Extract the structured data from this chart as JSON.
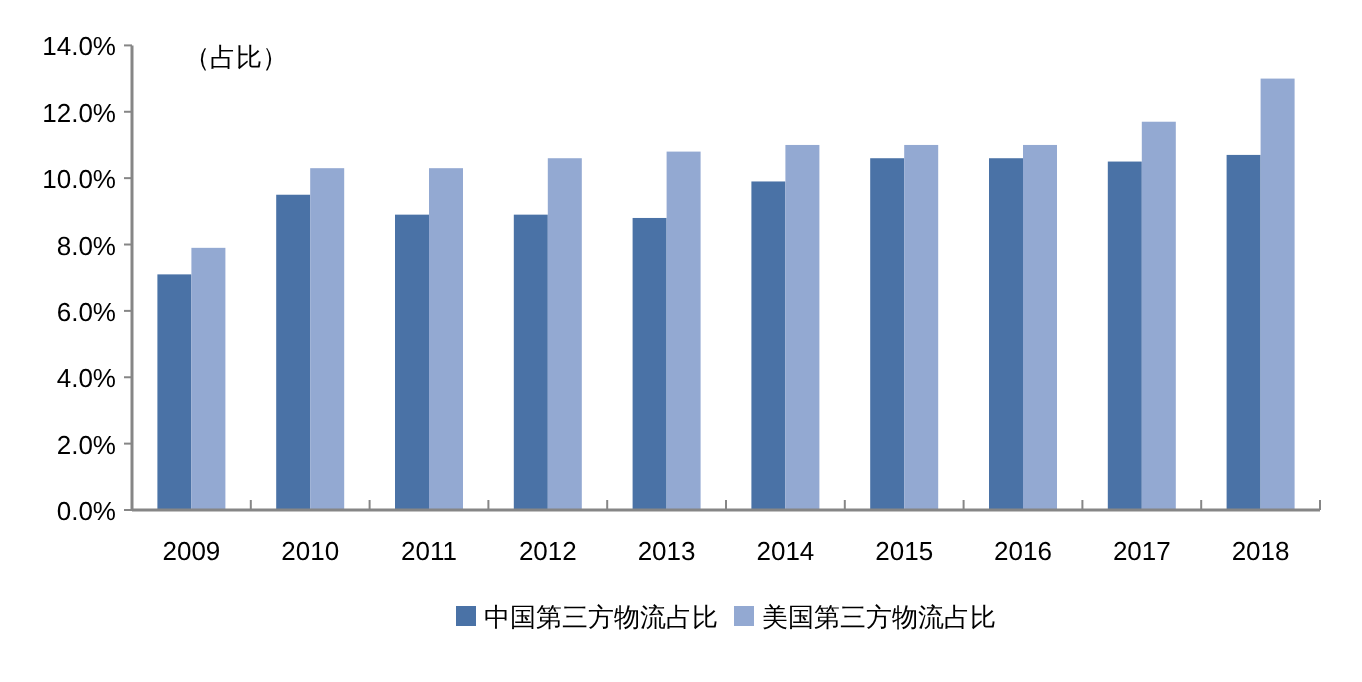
{
  "chart_data": {
    "type": "bar",
    "ylabel": "（占比）",
    "categories": [
      "2009",
      "2010",
      "2011",
      "2012",
      "2013",
      "2014",
      "2015",
      "2016",
      "2017",
      "2018"
    ],
    "series": [
      {
        "name": "中国第三方物流占比",
        "color": "#4a72a6",
        "values": [
          7.1,
          9.5,
          8.9,
          8.9,
          8.8,
          9.9,
          10.6,
          10.6,
          10.5,
          10.7
        ]
      },
      {
        "name": "美国第三方物流占比",
        "color": "#93a9d2",
        "values": [
          7.9,
          10.3,
          10.3,
          10.6,
          10.8,
          11.0,
          11.0,
          11.0,
          11.7,
          13.0
        ]
      }
    ],
    "ylim": [
      0,
      14
    ],
    "yticks": [
      {
        "value": 0,
        "label": "0.0%"
      },
      {
        "value": 2,
        "label": "2.0%"
      },
      {
        "value": 4,
        "label": "4.0%"
      },
      {
        "value": 6,
        "label": "6.0%"
      },
      {
        "value": 8,
        "label": "8.0%"
      },
      {
        "value": 10,
        "label": "10.0%"
      },
      {
        "value": 12,
        "label": "12.0%"
      },
      {
        "value": 14,
        "label": "14.0%"
      }
    ],
    "grid": false,
    "legend": "bottom"
  }
}
